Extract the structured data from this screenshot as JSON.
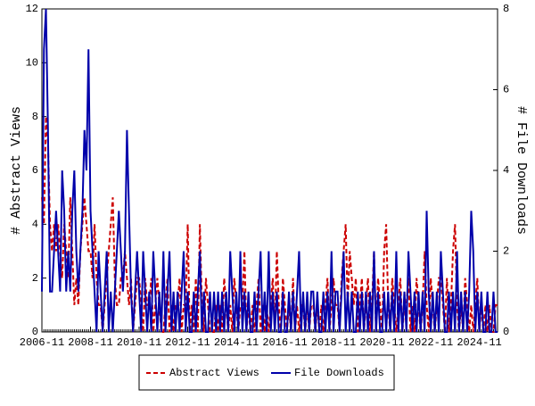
{
  "chart_data": {
    "type": "line",
    "x": [
      "2006-11",
      "2006-12",
      "2007-01",
      "2007-02",
      "2007-03",
      "2007-04",
      "2007-05",
      "2007-06",
      "2007-07",
      "2007-08",
      "2007-09",
      "2007-10",
      "2007-11",
      "2007-12",
      "2008-01",
      "2008-02",
      "2008-03",
      "2008-04",
      "2008-05",
      "2008-06",
      "2008-07",
      "2008-08",
      "2008-09",
      "2008-10",
      "2008-11",
      "2008-12",
      "2009-01",
      "2009-02",
      "2009-03",
      "2009-04",
      "2009-05",
      "2009-06",
      "2009-07",
      "2009-08",
      "2009-09",
      "2009-10",
      "2009-11",
      "2009-12",
      "2010-01",
      "2010-02",
      "2010-03",
      "2010-04",
      "2010-05",
      "2010-06",
      "2010-07",
      "2010-08",
      "2010-09",
      "2010-10",
      "2010-11",
      "2010-12",
      "2011-01",
      "2011-02",
      "2011-03",
      "2011-04",
      "2011-05",
      "2011-06",
      "2011-07",
      "2011-08",
      "2011-09",
      "2011-10",
      "2011-11",
      "2011-12",
      "2012-01",
      "2012-02",
      "2012-03",
      "2012-04",
      "2012-05",
      "2012-06",
      "2012-07",
      "2012-08",
      "2012-09",
      "2012-10",
      "2012-11",
      "2012-12",
      "2013-01",
      "2013-02",
      "2013-03",
      "2013-04",
      "2013-05",
      "2013-06",
      "2013-07",
      "2013-08",
      "2013-09",
      "2013-10",
      "2013-11",
      "2013-12",
      "2014-01",
      "2014-02",
      "2014-03",
      "2014-04",
      "2014-05",
      "2014-06",
      "2014-07",
      "2014-08",
      "2014-09",
      "2014-10",
      "2014-11",
      "2014-12",
      "2015-01",
      "2015-02",
      "2015-03",
      "2015-04",
      "2015-05",
      "2015-06",
      "2015-07",
      "2015-08",
      "2015-09",
      "2015-10",
      "2015-11",
      "2015-12",
      "2016-01",
      "2016-02",
      "2016-03",
      "2016-04",
      "2016-05",
      "2016-06",
      "2016-07",
      "2016-08",
      "2016-09",
      "2016-10",
      "2016-11",
      "2016-12",
      "2017-01",
      "2017-02",
      "2017-03",
      "2017-04",
      "2017-05",
      "2017-06",
      "2017-07",
      "2017-08",
      "2017-09",
      "2017-10",
      "2017-11",
      "2017-12",
      "2018-01",
      "2018-02",
      "2018-03",
      "2018-04",
      "2018-05",
      "2018-06",
      "2018-07",
      "2018-08",
      "2018-09",
      "2018-10",
      "2018-11",
      "2018-12",
      "2019-01",
      "2019-02",
      "2019-03",
      "2019-04",
      "2019-05",
      "2019-06",
      "2019-07",
      "2019-08",
      "2019-09",
      "2019-10",
      "2019-11",
      "2019-12",
      "2020-01",
      "2020-02",
      "2020-03",
      "2020-04",
      "2020-05",
      "2020-06",
      "2020-07",
      "2020-08",
      "2020-09",
      "2020-10",
      "2020-11",
      "2020-12",
      "2021-01",
      "2021-02",
      "2021-03",
      "2021-04",
      "2021-05",
      "2021-06",
      "2021-07",
      "2021-08",
      "2021-09",
      "2021-10",
      "2021-11",
      "2021-12",
      "2022-01",
      "2022-02",
      "2022-03",
      "2022-04",
      "2022-05",
      "2022-06",
      "2022-07",
      "2022-08",
      "2022-09",
      "2022-10",
      "2022-11",
      "2022-12",
      "2023-01",
      "2023-02",
      "2023-03",
      "2023-04",
      "2023-05",
      "2023-06",
      "2023-07",
      "2023-08",
      "2023-09",
      "2023-10",
      "2023-11",
      "2023-12",
      "2024-01",
      "2024-02",
      "2024-03",
      "2024-04",
      "2024-05",
      "2024-06",
      "2024-07",
      "2024-08",
      "2024-09",
      "2024-10",
      "2024-11",
      "2024-12",
      "2025-01",
      "2025-02",
      "2025-03",
      "2025-04",
      "2025-05",
      "2025-06",
      "2025-07",
      "2025-08"
    ],
    "xticks": [
      "2006-11",
      "2008-11",
      "2010-11",
      "2012-11",
      "2014-11",
      "2016-11",
      "2018-11",
      "2020-11",
      "2022-11",
      "2024-11"
    ],
    "ylabel": "# Abstract Views",
    "y2label": "# File Downloads",
    "ylim": [
      0,
      12
    ],
    "yticks": [
      0,
      2,
      4,
      6,
      8,
      10,
      12
    ],
    "y2lim": [
      0,
      8
    ],
    "y2ticks": [
      0,
      2,
      4,
      6,
      8
    ],
    "legend": "bottom",
    "series": [
      {
        "name": "Abstract Views",
        "color": "#cc0000",
        "dashed": true,
        "axis": "y",
        "values": [
          5,
          4,
          8,
          7,
          4,
          3,
          4,
          3,
          4,
          3,
          2,
          4,
          3,
          2,
          5,
          3,
          1,
          2,
          1,
          3,
          4,
          5,
          4,
          3,
          3,
          2,
          4,
          2,
          1,
          1,
          0,
          1,
          2,
          3,
          4,
          5,
          2,
          1,
          1,
          2,
          2,
          3,
          2,
          1,
          2,
          0,
          1,
          2,
          2,
          1,
          0,
          2,
          1,
          1,
          2,
          0,
          1,
          2,
          1,
          0,
          0,
          1,
          2,
          0,
          1,
          0,
          1,
          1,
          2,
          0,
          1,
          1,
          4,
          0,
          1,
          0,
          2,
          0,
          4,
          1,
          0,
          2,
          1,
          0,
          0,
          0,
          1,
          0,
          1,
          0,
          2,
          1,
          0,
          1,
          0,
          2,
          1,
          0,
          1,
          1,
          3,
          0,
          1,
          0,
          1,
          0,
          1,
          2,
          0,
          1,
          0,
          1,
          0,
          1,
          2,
          0,
          3,
          1,
          0,
          2,
          1,
          0,
          1,
          0,
          2,
          0,
          1,
          0,
          1,
          1,
          0,
          1,
          0,
          1,
          1,
          0,
          1,
          0,
          1,
          0,
          1,
          2,
          0,
          1,
          2,
          1,
          1,
          0,
          2,
          3,
          4,
          1,
          3,
          2,
          1,
          2,
          0,
          1,
          2,
          0,
          1,
          2,
          0,
          1,
          3,
          0,
          2,
          1,
          0,
          3,
          4,
          1,
          0,
          2,
          1,
          0,
          1,
          2,
          0,
          1,
          1,
          2,
          0,
          1,
          0,
          2,
          1,
          0,
          1,
          3,
          1,
          0,
          2,
          1,
          0,
          1,
          2,
          2,
          1,
          0,
          2,
          0,
          1,
          3,
          4,
          1,
          0,
          1,
          0,
          2,
          1,
          0,
          1,
          0,
          1,
          2,
          0,
          1,
          0,
          1,
          0,
          1,
          0,
          0,
          1,
          1
        ]
      },
      {
        "name": "File Downloads",
        "color": "#0000aa",
        "dashed": false,
        "axis": "y2",
        "values": [
          1,
          7,
          8,
          5,
          1,
          1,
          2,
          3,
          2,
          1,
          4,
          3,
          1,
          2,
          1,
          3,
          4,
          2,
          1,
          2,
          3,
          5,
          4,
          7,
          3,
          2,
          1,
          0,
          2,
          1,
          0,
          1,
          2,
          0,
          1,
          0,
          1,
          2,
          3,
          2,
          1,
          2,
          5,
          3,
          1,
          0,
          1,
          2,
          1,
          0,
          2,
          1,
          0,
          1,
          0,
          2,
          1,
          0,
          1,
          0,
          2,
          0,
          1,
          2,
          0,
          1,
          0,
          1,
          0,
          1,
          2,
          0,
          1,
          0,
          0,
          1,
          0,
          1,
          2,
          0,
          1,
          0,
          0,
          1,
          0,
          1,
          0,
          1,
          0,
          1,
          0,
          1,
          0,
          2,
          1,
          0,
          1,
          0,
          2,
          0,
          1,
          0,
          1,
          0,
          0,
          1,
          0,
          1,
          2,
          0,
          1,
          0,
          2,
          0,
          1,
          0,
          1,
          0,
          0,
          1,
          0,
          0,
          1,
          0,
          1,
          0,
          1,
          2,
          0,
          1,
          0,
          1,
          0,
          1,
          1,
          0,
          1,
          0,
          0,
          1,
          0,
          1,
          0,
          2,
          0,
          1,
          1,
          0,
          1,
          2,
          0,
          1,
          0,
          1,
          0,
          0,
          1,
          0,
          1,
          0,
          1,
          0,
          1,
          0,
          2,
          0,
          1,
          0,
          0,
          1,
          0,
          1,
          0,
          1,
          0,
          2,
          0,
          1,
          0,
          1,
          0,
          2,
          1,
          0,
          1,
          0,
          1,
          0,
          1,
          0,
          3,
          1,
          0,
          1,
          0,
          1,
          0,
          2,
          1,
          0,
          0,
          1,
          0,
          1,
          0,
          2,
          0,
          1,
          0,
          1,
          0,
          1,
          3,
          2,
          0,
          1,
          0,
          1,
          0,
          0,
          1,
          0,
          0,
          1,
          0,
          0
        ]
      }
    ]
  }
}
